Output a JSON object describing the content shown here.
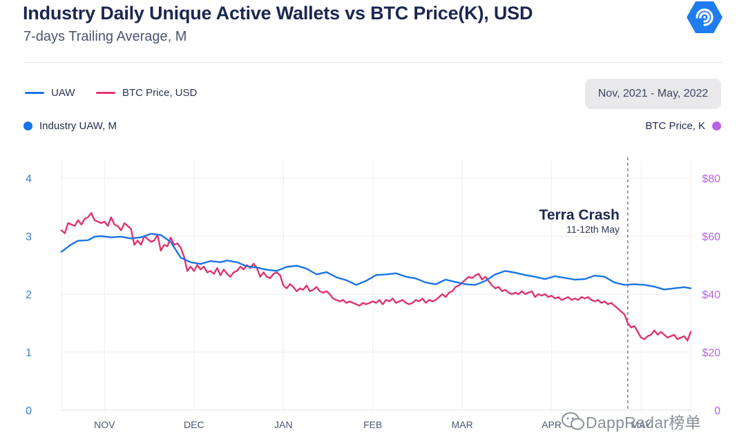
{
  "header": {
    "title": "Industry Daily Unique Active Wallets vs BTC Price(K), USD",
    "subtitle": "7-days Trailing Average, M"
  },
  "legend": {
    "uaw": "UAW",
    "btc": "BTC Price, USD"
  },
  "date_range": "Nov, 2021 - May, 2022",
  "axis_titles": {
    "left": "Industry UAW, M",
    "right": "BTC Price, K"
  },
  "annotation": {
    "title": "Terra Crash",
    "subtitle": "11-12th May"
  },
  "watermark": "DappRadar榜单",
  "colors": {
    "uaw": "#1a73e8",
    "btc": "#e0336b",
    "right_axis": "#b862e6",
    "left_axis": "#3a7bd5"
  },
  "chart_data": {
    "type": "line",
    "title": "Industry Daily Unique Active Wallets vs BTC Price(K), USD",
    "x_range": [
      0,
      190
    ],
    "x_ticks": [
      {
        "label": "NOV",
        "x": 13
      },
      {
        "label": "DEC",
        "x": 40
      },
      {
        "label": "JAN",
        "x": 67
      },
      {
        "label": "FEB",
        "x": 94
      },
      {
        "label": "MAR",
        "x": 121
      },
      {
        "label": "APR",
        "x": 148
      },
      {
        "label": "MAY",
        "x": 175
      }
    ],
    "y_left": {
      "label": "Industry UAW, M",
      "range": [
        0,
        4
      ],
      "ticks": [
        "0",
        "1",
        "2",
        "3",
        "4"
      ]
    },
    "y_right": {
      "label": "BTC Price, K",
      "range": [
        0,
        80
      ],
      "ticks": [
        "0",
        "$20",
        "$40",
        "$60",
        "$80"
      ]
    },
    "annotation_x": 171,
    "series": [
      {
        "name": "UAW",
        "axis": "left",
        "points": [
          [
            0,
            2.73
          ],
          [
            3,
            2.86
          ],
          [
            5,
            2.92
          ],
          [
            8,
            2.93
          ],
          [
            10,
            2.99
          ],
          [
            12,
            3.0
          ],
          [
            15,
            2.98
          ],
          [
            18,
            2.99
          ],
          [
            21,
            2.96
          ],
          [
            24,
            2.98
          ],
          [
            27,
            3.04
          ],
          [
            30,
            3.02
          ],
          [
            33,
            2.9
          ],
          [
            36,
            2.63
          ],
          [
            39,
            2.55
          ],
          [
            42,
            2.52
          ],
          [
            45,
            2.57
          ],
          [
            48,
            2.55
          ],
          [
            50,
            2.58
          ],
          [
            53,
            2.55
          ],
          [
            56,
            2.48
          ],
          [
            59,
            2.46
          ],
          [
            62,
            2.42
          ],
          [
            65,
            2.4
          ],
          [
            68,
            2.47
          ],
          [
            71,
            2.49
          ],
          [
            74,
            2.44
          ],
          [
            77,
            2.34
          ],
          [
            80,
            2.38
          ],
          [
            83,
            2.29
          ],
          [
            86,
            2.24
          ],
          [
            89,
            2.16
          ],
          [
            92,
            2.23
          ],
          [
            95,
            2.33
          ],
          [
            98,
            2.34
          ],
          [
            101,
            2.36
          ],
          [
            104,
            2.3
          ],
          [
            107,
            2.27
          ],
          [
            110,
            2.2
          ],
          [
            113,
            2.17
          ],
          [
            116,
            2.25
          ],
          [
            119,
            2.21
          ],
          [
            122,
            2.17
          ],
          [
            125,
            2.16
          ],
          [
            128,
            2.23
          ],
          [
            131,
            2.34
          ],
          [
            134,
            2.4
          ],
          [
            137,
            2.37
          ],
          [
            140,
            2.33
          ],
          [
            143,
            2.3
          ],
          [
            146,
            2.26
          ],
          [
            149,
            2.31
          ],
          [
            152,
            2.28
          ],
          [
            155,
            2.25
          ],
          [
            158,
            2.26
          ],
          [
            161,
            2.32
          ],
          [
            164,
            2.3
          ],
          [
            167,
            2.2
          ],
          [
            170,
            2.16
          ],
          [
            173,
            2.17
          ],
          [
            176,
            2.16
          ],
          [
            179,
            2.13
          ],
          [
            182,
            2.08
          ],
          [
            185,
            2.1
          ],
          [
            188,
            2.12
          ],
          [
            190,
            2.1
          ]
        ]
      },
      {
        "name": "BTC Price, USD",
        "axis": "right",
        "points": [
          [
            0,
            62
          ],
          [
            1,
            61
          ],
          [
            2,
            64.5
          ],
          [
            4,
            63.5
          ],
          [
            5,
            65.5
          ],
          [
            6,
            64
          ],
          [
            7,
            66
          ],
          [
            8,
            66.5
          ],
          [
            9,
            68
          ],
          [
            10,
            65.5
          ],
          [
            11,
            65
          ],
          [
            12,
            64.5
          ],
          [
            13,
            65
          ],
          [
            14,
            63.5
          ],
          [
            15,
            66.5
          ],
          [
            16,
            64
          ],
          [
            17,
            63.5
          ],
          [
            18,
            62
          ],
          [
            19,
            64.5
          ],
          [
            20,
            63.5
          ],
          [
            21,
            62.5
          ],
          [
            22,
            57
          ],
          [
            23,
            58.5
          ],
          [
            24,
            57
          ],
          [
            25,
            60
          ],
          [
            26,
            59
          ],
          [
            27,
            58
          ],
          [
            28,
            58.5
          ],
          [
            29,
            60.5
          ],
          [
            30,
            55
          ],
          [
            31,
            57
          ],
          [
            32,
            56.5
          ],
          [
            33,
            59.5
          ],
          [
            34,
            57
          ],
          [
            35,
            57.5
          ],
          [
            36,
            56
          ],
          [
            37,
            53
          ],
          [
            38,
            48
          ],
          [
            39,
            49.5
          ],
          [
            40,
            48
          ],
          [
            41,
            50
          ],
          [
            42,
            48.5
          ],
          [
            43,
            49.5
          ],
          [
            44,
            47.5
          ],
          [
            45,
            48
          ],
          [
            46,
            47
          ],
          [
            47,
            49
          ],
          [
            48,
            46.5
          ],
          [
            49,
            48.5
          ],
          [
            50,
            47
          ],
          [
            51,
            46
          ],
          [
            52,
            47.5
          ],
          [
            53,
            48
          ],
          [
            54,
            49.5
          ],
          [
            55,
            48.5
          ],
          [
            56,
            50
          ],
          [
            57,
            49
          ],
          [
            58,
            50.5
          ],
          [
            59,
            49
          ],
          [
            60,
            46
          ],
          [
            61,
            47.5
          ],
          [
            62,
            46
          ],
          [
            63,
            45.5
          ],
          [
            64,
            47
          ],
          [
            65,
            47.5
          ],
          [
            66,
            46.5
          ],
          [
            67,
            43
          ],
          [
            68,
            42
          ],
          [
            69,
            43.5
          ],
          [
            70,
            42.5
          ],
          [
            71,
            41
          ],
          [
            72,
            42
          ],
          [
            73,
            41.5
          ],
          [
            74,
            43
          ],
          [
            75,
            41
          ],
          [
            76,
            41.5
          ],
          [
            77,
            42.5
          ],
          [
            78,
            41
          ],
          [
            79,
            40.5
          ],
          [
            80,
            41
          ],
          [
            81,
            40
          ],
          [
            82,
            38.5
          ],
          [
            83,
            38
          ],
          [
            84,
            37.5
          ],
          [
            85,
            38
          ],
          [
            86,
            37
          ],
          [
            87,
            37.5
          ],
          [
            88,
            37
          ],
          [
            89,
            36.5
          ],
          [
            90,
            36
          ],
          [
            91,
            37
          ],
          [
            92,
            36.5
          ],
          [
            93,
            37
          ],
          [
            94,
            37.5
          ],
          [
            95,
            37
          ],
          [
            96,
            38
          ],
          [
            97,
            36.5
          ],
          [
            98,
            38
          ],
          [
            99,
            37.5
          ],
          [
            100,
            38.5
          ],
          [
            101,
            37
          ],
          [
            102,
            37.5
          ],
          [
            103,
            38
          ],
          [
            104,
            37
          ],
          [
            105,
            36.5
          ],
          [
            106,
            37
          ],
          [
            107,
            38
          ],
          [
            108,
            37.5
          ],
          [
            109,
            38.5
          ],
          [
            110,
            37
          ],
          [
            111,
            38
          ],
          [
            112,
            37.5
          ],
          [
            113,
            38
          ],
          [
            114,
            39
          ],
          [
            115,
            40
          ],
          [
            116,
            39
          ],
          [
            117,
            40.5
          ],
          [
            118,
            41
          ],
          [
            119,
            42.5
          ],
          [
            120,
            43
          ],
          [
            121,
            44
          ],
          [
            122,
            45
          ],
          [
            123,
            46
          ],
          [
            124,
            45.5
          ],
          [
            125,
            46.5
          ],
          [
            126,
            47
          ],
          [
            127,
            45
          ],
          [
            128,
            46
          ],
          [
            129,
            44.5
          ],
          [
            130,
            43
          ],
          [
            131,
            42
          ],
          [
            132,
            42.5
          ],
          [
            133,
            41
          ],
          [
            134,
            41.5
          ],
          [
            135,
            40.5
          ],
          [
            136,
            40
          ],
          [
            137,
            40.5
          ],
          [
            138,
            40
          ],
          [
            139,
            41
          ],
          [
            140,
            40
          ],
          [
            141,
            40.5
          ],
          [
            142,
            41
          ],
          [
            143,
            39
          ],
          [
            144,
            40
          ],
          [
            145,
            39.5
          ],
          [
            146,
            40
          ],
          [
            147,
            39
          ],
          [
            148,
            39.5
          ],
          [
            149,
            38.5
          ],
          [
            150,
            39
          ],
          [
            151,
            38
          ],
          [
            152,
            38.5
          ],
          [
            153,
            39
          ],
          [
            154,
            38
          ],
          [
            155,
            38.5
          ],
          [
            156,
            38
          ],
          [
            157,
            39
          ],
          [
            158,
            38.5
          ],
          [
            159,
            39
          ],
          [
            160,
            38
          ],
          [
            161,
            37.5
          ],
          [
            162,
            38
          ],
          [
            163,
            37
          ],
          [
            164,
            37.5
          ],
          [
            165,
            36.5
          ],
          [
            166,
            37
          ],
          [
            167,
            36
          ],
          [
            168,
            35
          ],
          [
            169,
            34
          ],
          [
            170,
            33
          ],
          [
            171,
            30
          ],
          [
            172,
            28.5
          ],
          [
            173,
            29
          ],
          [
            174,
            27
          ],
          [
            175,
            25
          ],
          [
            176,
            24.5
          ],
          [
            177,
            25.5
          ],
          [
            178,
            26
          ],
          [
            179,
            27.5
          ],
          [
            180,
            26
          ],
          [
            181,
            27
          ],
          [
            182,
            26
          ],
          [
            183,
            25
          ],
          [
            184,
            25.5
          ],
          [
            185,
            26
          ],
          [
            186,
            24.5
          ],
          [
            187,
            25
          ],
          [
            188,
            25.5
          ],
          [
            189,
            24
          ],
          [
            190,
            27
          ]
        ]
      }
    ]
  }
}
